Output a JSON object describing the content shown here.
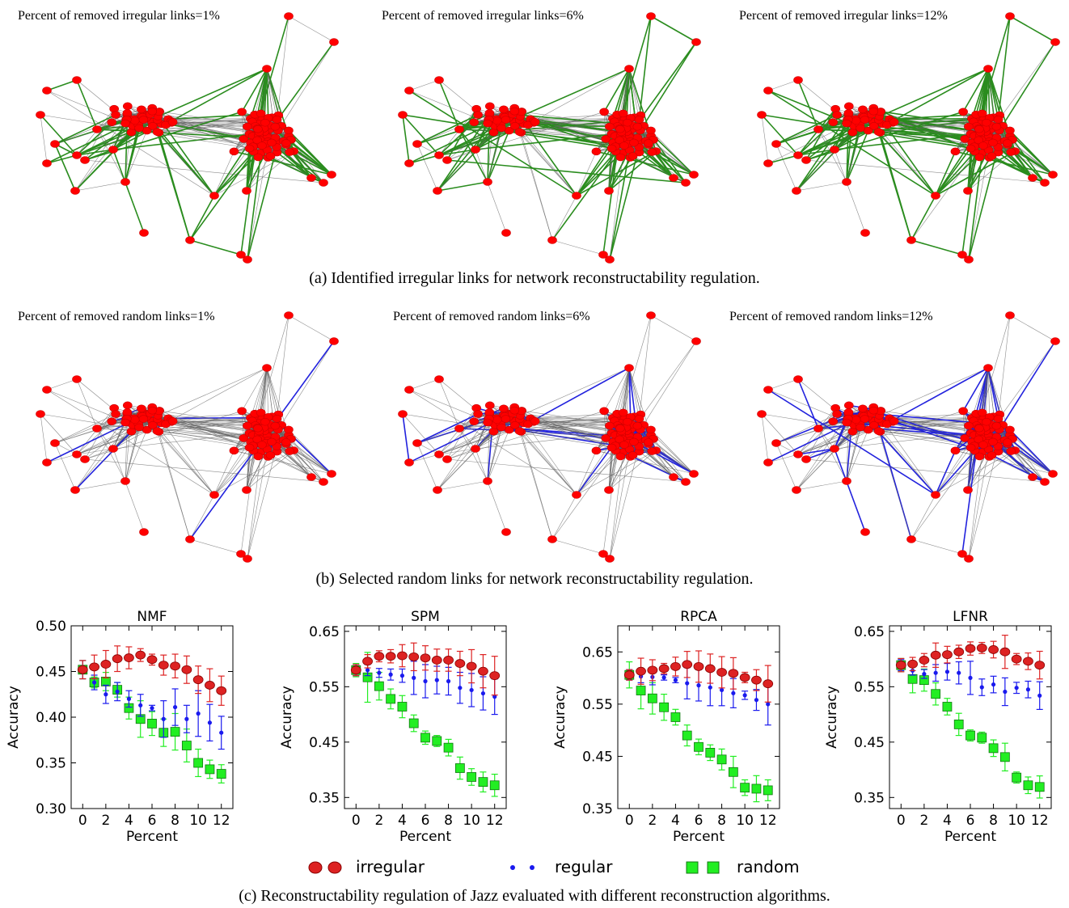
{
  "panel_a": {
    "titles": [
      "Percent of removed irregular links=1%",
      "Percent of removed irregular links=6%",
      "Percent of removed irregular links=12%"
    ],
    "caption": "(a) Identified irregular links for network reconstructability regulation.",
    "highlight_color": "#2a8c1e"
  },
  "panel_b": {
    "titles": [
      "Percent of removed random links=1%",
      "Percent of removed random links=6%",
      "Percent of removed random links=12%"
    ],
    "caption": "(b) Selected random links for network reconstructability regulation.",
    "highlight_color": "#2222dd"
  },
  "panel_c": {
    "caption": "(c) Reconstructability regulation of Jazz evaluated with different reconstruction algorithms.",
    "legend": [
      {
        "label": "irregular",
        "color": "#dd2222",
        "marker": "circle"
      },
      {
        "label": "regular",
        "color": "#1a1aee",
        "marker": "dot"
      },
      {
        "label": "random",
        "color": "#22ee22",
        "marker": "square"
      }
    ]
  },
  "chart_data": [
    {
      "type": "scatter",
      "title": "NMF",
      "xlabel": "Percent",
      "ylabel": "Accuracy",
      "xlim": [
        -1,
        13
      ],
      "ylim": [
        0.3,
        0.5
      ],
      "yticks": [
        0.3,
        0.35,
        0.4,
        0.45,
        0.5
      ],
      "yticklabels": [
        "0.30",
        "0.35",
        "0.40",
        "0.45",
        "0.50"
      ],
      "xticks": [
        0,
        2,
        4,
        6,
        8,
        10,
        12
      ],
      "series": [
        {
          "name": "irregular",
          "x": [
            0,
            1,
            2,
            3,
            4,
            5,
            6,
            7,
            8,
            9,
            10,
            11,
            12
          ],
          "y": [
            0.452,
            0.455,
            0.458,
            0.464,
            0.465,
            0.468,
            0.463,
            0.457,
            0.456,
            0.452,
            0.441,
            0.435,
            0.429
          ],
          "err": [
            0.01,
            0.013,
            0.015,
            0.014,
            0.012,
            0.007,
            0.006,
            0.011,
            0.013,
            0.015,
            0.015,
            0.018,
            0.016
          ]
        },
        {
          "name": "regular",
          "x": [
            0,
            1,
            2,
            3,
            4,
            5,
            6,
            7,
            8,
            9,
            10,
            11,
            12
          ],
          "y": [
            0.452,
            0.438,
            0.425,
            0.428,
            0.42,
            0.413,
            0.41,
            0.398,
            0.411,
            0.398,
            0.404,
            0.394,
            0.383
          ],
          "err": [
            0.01,
            0.008,
            0.01,
            0.01,
            0.009,
            0.012,
            0.003,
            0.02,
            0.02,
            0.015,
            0.025,
            0.02,
            0.018
          ]
        },
        {
          "name": "random",
          "x": [
            0,
            1,
            2,
            3,
            4,
            5,
            6,
            7,
            8,
            9,
            10,
            11,
            12
          ],
          "y": [
            0.452,
            0.438,
            0.439,
            0.43,
            0.41,
            0.398,
            0.393,
            0.383,
            0.384,
            0.369,
            0.35,
            0.343,
            0.338
          ],
          "err": [
            0.01,
            0.006,
            0.01,
            0.008,
            0.012,
            0.02,
            0.013,
            0.015,
            0.02,
            0.018,
            0.015,
            0.01,
            0.01
          ]
        }
      ]
    },
    {
      "type": "scatter",
      "title": "SPM",
      "xlabel": "Percent",
      "ylabel": "Accuracy",
      "xlim": [
        -1,
        13
      ],
      "ylim": [
        0.33,
        0.66
      ],
      "yticks": [
        0.35,
        0.45,
        0.55,
        0.65
      ],
      "yticklabels": [
        "0.35",
        "0.45",
        "0.55",
        "0.65"
      ],
      "xticks": [
        0,
        2,
        4,
        6,
        8,
        10,
        12
      ],
      "series": [
        {
          "name": "irregular",
          "x": [
            0,
            1,
            2,
            3,
            4,
            5,
            6,
            7,
            8,
            9,
            10,
            11,
            12
          ],
          "y": [
            0.58,
            0.596,
            0.605,
            0.605,
            0.606,
            0.604,
            0.602,
            0.598,
            0.598,
            0.592,
            0.587,
            0.578,
            0.57
          ],
          "err": [
            0.01,
            0.012,
            0.01,
            0.012,
            0.02,
            0.025,
            0.022,
            0.02,
            0.02,
            0.022,
            0.03,
            0.03,
            0.035
          ]
        },
        {
          "name": "regular",
          "x": [
            0,
            1,
            2,
            3,
            4,
            5,
            6,
            7,
            8,
            9,
            10,
            11,
            12
          ],
          "y": [
            0.58,
            0.58,
            0.575,
            0.572,
            0.57,
            0.566,
            0.56,
            0.562,
            0.56,
            0.548,
            0.544,
            0.538,
            0.532
          ],
          "err": [
            0.01,
            0.01,
            0.008,
            0.01,
            0.012,
            0.03,
            0.03,
            0.025,
            0.025,
            0.028,
            0.03,
            0.03,
            0.032
          ]
        },
        {
          "name": "random",
          "x": [
            0,
            1,
            2,
            3,
            4,
            5,
            6,
            7,
            8,
            9,
            10,
            11,
            12
          ],
          "y": [
            0.58,
            0.567,
            0.551,
            0.528,
            0.514,
            0.484,
            0.458,
            0.452,
            0.44,
            0.403,
            0.387,
            0.378,
            0.372
          ],
          "err": [
            0.012,
            0.045,
            0.025,
            0.018,
            0.02,
            0.015,
            0.012,
            0.01,
            0.015,
            0.02,
            0.015,
            0.018,
            0.02
          ]
        }
      ]
    },
    {
      "type": "scatter",
      "title": "RPCA",
      "xlabel": "Percent",
      "ylabel": "Accuracy",
      "xlim": [
        -1,
        13
      ],
      "ylim": [
        0.35,
        0.7
      ],
      "yticks": [
        0.35,
        0.45,
        0.55,
        0.65
      ],
      "yticklabels": [
        "0.35",
        "0.45",
        "0.55",
        "0.65"
      ],
      "xticks": [
        0,
        2,
        4,
        6,
        8,
        10,
        12
      ],
      "series": [
        {
          "name": "irregular",
          "x": [
            0,
            1,
            2,
            3,
            4,
            5,
            6,
            7,
            8,
            9,
            10,
            11,
            12
          ],
          "y": [
            0.606,
            0.613,
            0.615,
            0.618,
            0.622,
            0.626,
            0.622,
            0.618,
            0.611,
            0.609,
            0.601,
            0.596,
            0.589
          ],
          "err": [
            0.01,
            0.025,
            0.02,
            0.01,
            0.018,
            0.025,
            0.03,
            0.028,
            0.03,
            0.03,
            0.01,
            0.02,
            0.035
          ]
        },
        {
          "name": "regular",
          "x": [
            0,
            1,
            2,
            3,
            4,
            5,
            6,
            7,
            8,
            9,
            10,
            11,
            12
          ],
          "y": [
            0.606,
            0.603,
            0.602,
            0.601,
            0.596,
            0.59,
            0.586,
            0.582,
            0.577,
            0.571,
            0.567,
            0.558,
            0.55
          ],
          "err": [
            0.01,
            0.012,
            0.015,
            0.005,
            0.005,
            0.03,
            0.03,
            0.035,
            0.03,
            0.028,
            0.008,
            0.02,
            0.04
          ]
        },
        {
          "name": "random",
          "x": [
            0,
            1,
            2,
            3,
            4,
            5,
            6,
            7,
            8,
            9,
            10,
            11,
            12
          ],
          "y": [
            0.606,
            0.576,
            0.561,
            0.544,
            0.525,
            0.49,
            0.468,
            0.457,
            0.444,
            0.42,
            0.39,
            0.388,
            0.385
          ],
          "err": [
            0.025,
            0.035,
            0.03,
            0.025,
            0.015,
            0.02,
            0.015,
            0.015,
            0.02,
            0.03,
            0.015,
            0.025,
            0.02
          ]
        }
      ]
    },
    {
      "type": "scatter",
      "title": "LFNR",
      "xlabel": "Percent",
      "ylabel": "Accuracy",
      "xlim": [
        -1,
        13
      ],
      "ylim": [
        0.33,
        0.66
      ],
      "yticks": [
        0.35,
        0.45,
        0.55,
        0.65
      ],
      "yticklabels": [
        "0.35",
        "0.45",
        "0.55",
        "0.65"
      ],
      "xticks": [
        0,
        2,
        4,
        6,
        8,
        10,
        12
      ],
      "series": [
        {
          "name": "irregular",
          "x": [
            0,
            1,
            2,
            3,
            4,
            5,
            6,
            7,
            8,
            9,
            10,
            11,
            12
          ],
          "y": [
            0.589,
            0.591,
            0.598,
            0.607,
            0.608,
            0.613,
            0.619,
            0.62,
            0.617,
            0.613,
            0.6,
            0.596,
            0.589
          ],
          "err": [
            0.012,
            0.012,
            0.012,
            0.022,
            0.015,
            0.012,
            0.012,
            0.01,
            0.015,
            0.03,
            0.01,
            0.015,
            0.025
          ]
        },
        {
          "name": "regular",
          "x": [
            0,
            1,
            2,
            3,
            4,
            5,
            6,
            7,
            8,
            9,
            10,
            11,
            12
          ],
          "y": [
            0.589,
            0.579,
            0.573,
            0.575,
            0.577,
            0.575,
            0.566,
            0.549,
            0.554,
            0.541,
            0.548,
            0.545,
            0.534
          ],
          "err": [
            0.01,
            0.008,
            0.008,
            0.015,
            0.015,
            0.02,
            0.03,
            0.015,
            0.015,
            0.025,
            0.01,
            0.015,
            0.025
          ]
        },
        {
          "name": "random",
          "x": [
            0,
            1,
            2,
            3,
            4,
            5,
            6,
            7,
            8,
            9,
            10,
            11,
            12
          ],
          "y": [
            0.589,
            0.564,
            0.562,
            0.537,
            0.514,
            0.482,
            0.462,
            0.458,
            0.439,
            0.423,
            0.386,
            0.372,
            0.369
          ],
          "err": [
            0.012,
            0.025,
            0.02,
            0.02,
            0.015,
            0.02,
            0.01,
            0.01,
            0.015,
            0.025,
            0.01,
            0.015,
            0.02
          ]
        }
      ]
    }
  ]
}
